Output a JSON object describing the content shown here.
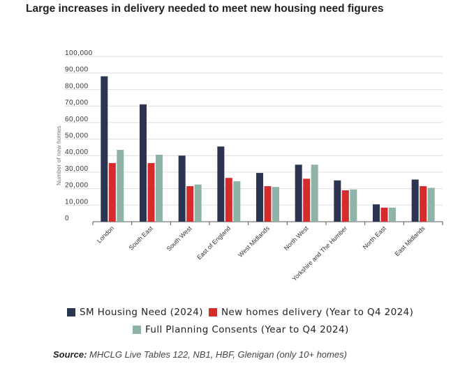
{
  "page": {
    "title": "Large increases in delivery needed to meet new housing need figures",
    "source_label": "Source:",
    "source_text": "MHCLG Live Tables 122, NB1, HBF, Glenigan (only 10+ homes)"
  },
  "colors": {
    "sm_housing_need": "#2b3552",
    "new_homes_delivery": "#d62b2b",
    "full_planning_consents": "#8fb3a6",
    "grid": "#dddddd",
    "axis": "#555555"
  },
  "chart_data": {
    "type": "bar",
    "title": "",
    "xlabel": "",
    "ylabel": "Number of new homes",
    "ylim": [
      0,
      100000
    ],
    "yticks": [
      "0",
      "10,000",
      "20,000",
      "30,000",
      "40,000",
      "50,000",
      "60,000",
      "70,000",
      "80,000",
      "90,000",
      "100,000"
    ],
    "grid": true,
    "legend_position": "bottom",
    "categories": [
      "London",
      "South East",
      "South West",
      "East of England",
      "West Midlands",
      "North West",
      "Yorkshire and The Humber",
      "North East",
      "East Midlands"
    ],
    "series": [
      {
        "name": "SM Housing Need (2024)",
        "color_key": "sm_housing_need",
        "values": [
          88000,
          71000,
          40000,
          45500,
          29500,
          34500,
          25000,
          10500,
          25500
        ]
      },
      {
        "name": "New homes delivery (Year to Q4 2024)",
        "color_key": "new_homes_delivery",
        "values": [
          35500,
          35500,
          21500,
          26500,
          21500,
          26000,
          19000,
          8500,
          21500
        ]
      },
      {
        "name": "Full Planning Consents (Year to Q4 2024)",
        "color_key": "full_planning_consents",
        "values": [
          43500,
          40500,
          22500,
          24500,
          21000,
          34500,
          19500,
          8500,
          20500
        ]
      }
    ]
  }
}
